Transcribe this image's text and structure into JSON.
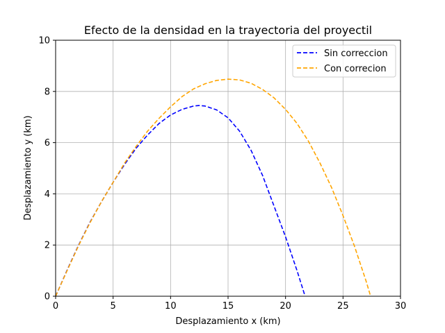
{
  "chart_data": {
    "type": "line",
    "title": "Efecto de la densidad en la trayectoria del proyectil",
    "xlabel": "Desplazamiento x (km)",
    "ylabel": "Desplazamiento y (km)",
    "xlim": [
      0,
      30
    ],
    "ylim": [
      0,
      10
    ],
    "xticks": [
      "0",
      "5",
      "10",
      "15",
      "20",
      "25",
      "30"
    ],
    "yticks": [
      "0",
      "2",
      "4",
      "6",
      "8",
      "10"
    ],
    "grid": true,
    "legend_position": "top-right",
    "series": [
      {
        "name": "Sin correccion",
        "color": "#0000ff",
        "style": "dashed",
        "x": [
          0,
          1,
          2,
          3,
          4,
          5,
          6,
          7,
          8,
          9,
          10,
          11,
          12,
          12.5,
          13,
          14,
          15,
          16,
          17,
          18,
          19,
          20,
          21,
          21.7
        ],
        "y": [
          0,
          1.02,
          2.0,
          2.9,
          3.7,
          4.45,
          5.15,
          5.78,
          6.3,
          6.75,
          7.08,
          7.3,
          7.43,
          7.45,
          7.43,
          7.28,
          6.97,
          6.45,
          5.7,
          4.72,
          3.52,
          2.32,
          1.0,
          0
        ]
      },
      {
        "name": "Con correcion",
        "color": "#ffa500",
        "style": "dashed",
        "x": [
          0,
          1,
          2,
          3,
          4,
          5,
          6,
          7,
          8,
          9,
          10,
          11,
          12,
          13,
          14,
          15,
          16,
          17,
          18,
          19,
          20,
          21,
          22,
          23,
          24,
          25,
          26,
          27,
          27.4
        ],
        "y": [
          0,
          1.0,
          1.98,
          2.88,
          3.7,
          4.45,
          5.2,
          5.85,
          6.45,
          6.95,
          7.4,
          7.8,
          8.1,
          8.3,
          8.43,
          8.48,
          8.45,
          8.32,
          8.08,
          7.75,
          7.3,
          6.75,
          6.05,
          5.2,
          4.25,
          3.15,
          1.95,
          0.6,
          0
        ]
      }
    ]
  }
}
